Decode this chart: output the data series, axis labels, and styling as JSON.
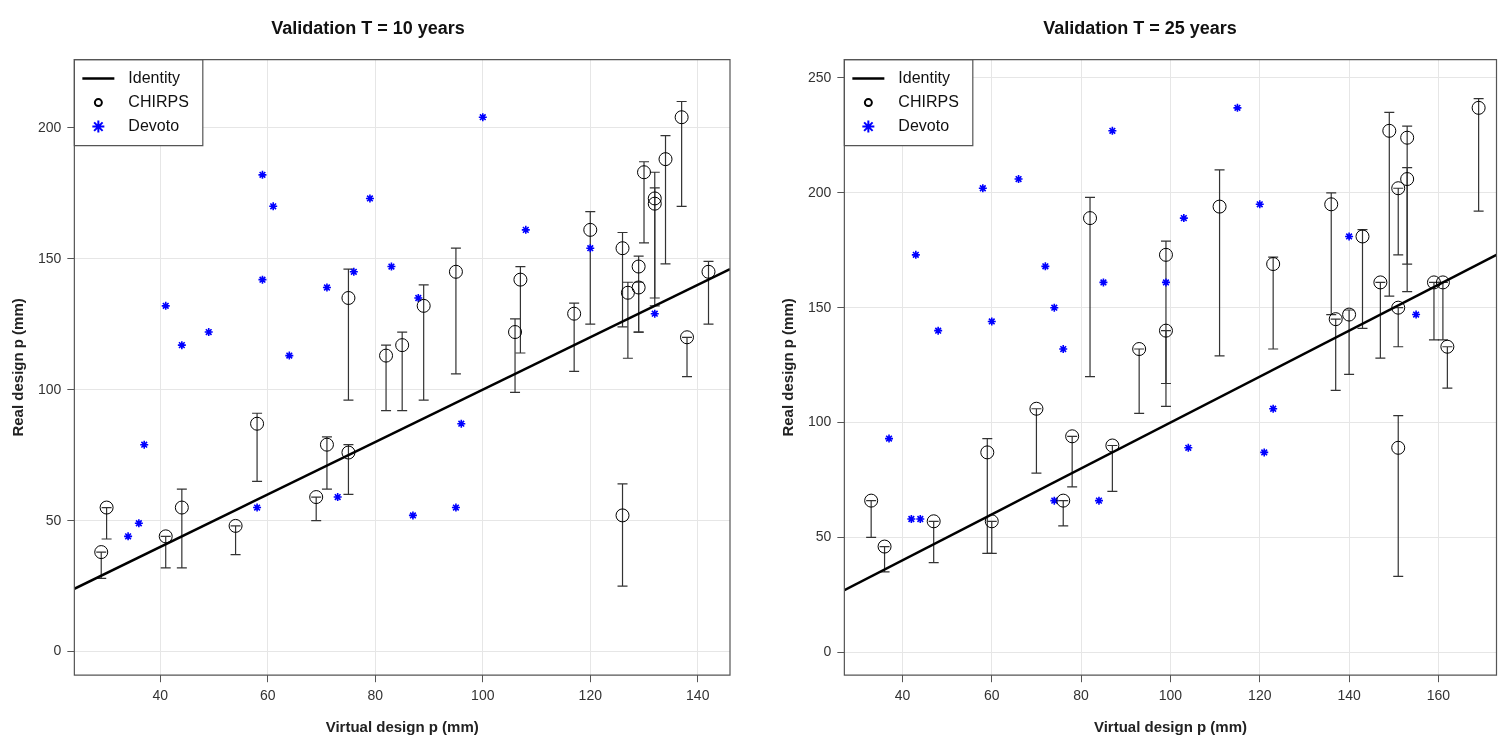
{
  "chart_data": [
    {
      "type": "scatter",
      "title": "Validation T = 10 years",
      "xlabel": "Virtual design p (mm)",
      "ylabel": "Real design p (mm)",
      "xlim": [
        24,
        146
      ],
      "ylim": [
        -9,
        226
      ],
      "xticks": [
        40,
        60,
        80,
        100,
        120,
        140
      ],
      "yticks": [
        0,
        50,
        100,
        150,
        200
      ],
      "grid": true,
      "legend": "top left",
      "series": [
        {
          "name": "Identity",
          "type": "line",
          "color": "#000000",
          "marker": "none",
          "x": [
            24,
            146
          ],
          "values": [
            24,
            146
          ]
        },
        {
          "name": "CHIRPS",
          "type": "scatter",
          "color": "#000000",
          "marker": "circle",
          "x": [
            29,
            30,
            41,
            44,
            54,
            58,
            69,
            71,
            75,
            75,
            82,
            85,
            89,
            95,
            106,
            107,
            117,
            120,
            126,
            126,
            129,
            127,
            129,
            130,
            132,
            132,
            134,
            137,
            138,
            142
          ],
          "values": [
            38,
            55,
            44,
            55,
            48,
            87,
            59,
            79,
            76,
            135,
            113,
            117,
            132,
            145,
            122,
            142,
            129,
            161,
            52,
            154,
            147,
            137,
            139,
            183,
            173,
            171,
            188,
            204,
            120,
            145
          ],
          "errors": [
            [
              28,
              38
            ],
            [
              43,
              55
            ],
            [
              32,
              44
            ],
            [
              32,
              62
            ],
            [
              37,
              48
            ],
            [
              65,
              91
            ],
            [
              50,
              59
            ],
            [
              62,
              82
            ],
            [
              60,
              79
            ],
            [
              96,
              146
            ],
            [
              92,
              117
            ],
            [
              92,
              122
            ],
            [
              96,
              140
            ],
            [
              106,
              154
            ],
            [
              99,
              127
            ],
            [
              114,
              147
            ],
            [
              107,
              133
            ],
            [
              125,
              168
            ],
            [
              25,
              64
            ],
            [
              124,
              160
            ],
            [
              122,
              151
            ],
            [
              112,
              141
            ],
            [
              122,
              141
            ],
            [
              156,
              187
            ],
            [
              132,
              183
            ],
            [
              135,
              177
            ],
            [
              148,
              197
            ],
            [
              170,
              210
            ],
            [
              105,
              120
            ],
            [
              125,
              149
            ]
          ]
        },
        {
          "name": "Devoto",
          "type": "scatter",
          "color": "#0000ff",
          "marker": "cross",
          "x": [
            34,
            36,
            37,
            41,
            44,
            49,
            58,
            59,
            61,
            59,
            64,
            71,
            73,
            76,
            79,
            83,
            87,
            88,
            95,
            96,
            100,
            108,
            120,
            132
          ],
          "values": [
            44,
            49,
            79,
            132,
            117,
            122,
            55,
            182,
            170,
            142,
            113,
            139,
            59,
            145,
            173,
            147,
            52,
            135,
            55,
            87,
            204,
            161,
            154,
            129
          ]
        }
      ]
    },
    {
      "type": "scatter",
      "title": "Validation T = 25 years",
      "xlabel": "Virtual design p (mm)",
      "ylabel": "Real design p (mm)",
      "xlim": [
        27,
        173
      ],
      "ylim": [
        -10,
        258
      ],
      "xticks": [
        40,
        60,
        80,
        100,
        120,
        140,
        160
      ],
      "yticks": [
        0,
        50,
        100,
        150,
        200,
        250
      ],
      "grid": true,
      "legend": "top left",
      "series": [
        {
          "name": "Identity",
          "type": "line",
          "color": "#000000",
          "marker": "none",
          "x": [
            27,
            173
          ],
          "values": [
            27,
            173
          ]
        },
        {
          "name": "CHIRPS",
          "type": "scatter",
          "color": "#000000",
          "marker": "circle",
          "x": [
            33,
            36,
            47,
            59,
            60,
            70,
            76,
            78,
            82,
            87,
            93,
            99,
            99,
            111,
            123,
            136,
            137,
            140,
            143,
            147,
            149,
            151,
            151,
            151,
            153,
            153,
            159,
            161,
            162,
            169
          ],
          "values": [
            66,
            46,
            57,
            87,
            57,
            106,
            66,
            94,
            189,
            90,
            132,
            173,
            140,
            194,
            169,
            195,
            145,
            147,
            181,
            161,
            227,
            150,
            202,
            89,
            224,
            206,
            161,
            161,
            133,
            237
          ],
          "errors": [
            [
              50,
              66
            ],
            [
              35,
              46
            ],
            [
              39,
              57
            ],
            [
              43,
              93
            ],
            [
              43,
              57
            ],
            [
              78,
              106
            ],
            [
              55,
              66
            ],
            [
              72,
              94
            ],
            [
              120,
              198
            ],
            [
              70,
              90
            ],
            [
              104,
              132
            ],
            [
              117,
              179
            ],
            [
              107,
              140
            ],
            [
              129,
              210
            ],
            [
              132,
              172
            ],
            [
              147,
              200
            ],
            [
              114,
              145
            ],
            [
              121,
              149
            ],
            [
              141,
              184
            ],
            [
              128,
              161
            ],
            [
              155,
              235
            ],
            [
              133,
              150
            ],
            [
              173,
              202
            ],
            [
              33,
              103
            ],
            [
              157,
              229
            ],
            [
              169,
              211
            ],
            [
              136,
              161
            ],
            [
              136,
              161
            ],
            [
              115,
              133
            ],
            [
              192,
              241
            ]
          ]
        },
        {
          "name": "Devoto",
          "type": "scatter",
          "color": "#0000ff",
          "marker": "cross",
          "x": [
            37,
            42,
            44,
            43,
            48,
            58,
            60,
            66,
            72,
            74,
            74,
            76,
            84,
            85,
            87,
            99,
            103,
            104,
            115,
            120,
            121,
            123,
            140,
            155
          ],
          "values": [
            93,
            58,
            58,
            173,
            140,
            202,
            144,
            206,
            168,
            150,
            66,
            132,
            66,
            161,
            227,
            161,
            189,
            89,
            237,
            195,
            87,
            106,
            181,
            147
          ]
        }
      ]
    }
  ]
}
